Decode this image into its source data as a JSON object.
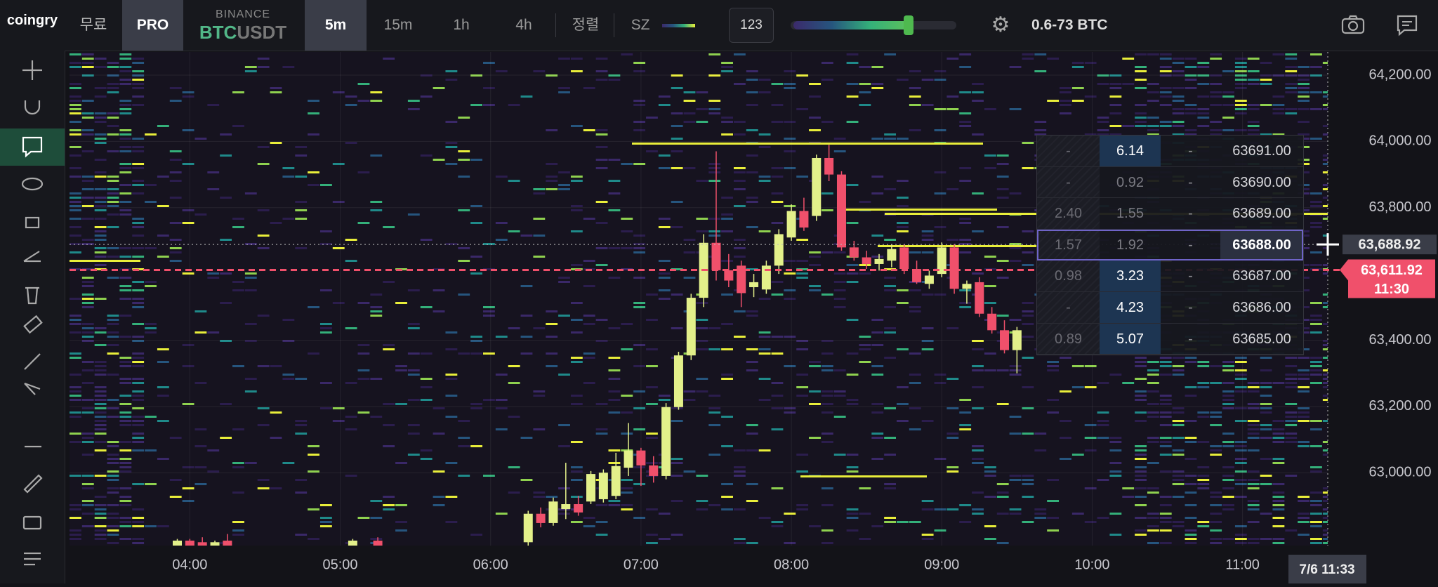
{
  "toolbar": {
    "logo": "coingry",
    "free": "무료",
    "pro": "PRO",
    "exchange": "BINANCE",
    "pair_base": "BTC",
    "pair_quote": "USDT",
    "intervals": [
      "5m",
      "15m",
      "1h",
      "4h"
    ],
    "sort": "정렬",
    "size": "SZ",
    "count": "123",
    "range": "0.6-73 BTC"
  },
  "orderbook": {
    "rows": [
      [
        "-",
        "6.14",
        "-",
        "63691.00"
      ],
      [
        "-",
        "0.92",
        "-",
        "63690.00"
      ],
      [
        "2.40",
        "1.55",
        "-",
        "63689.00"
      ],
      [
        "1.57",
        "1.92",
        "-",
        "63688.00"
      ],
      [
        "0.98",
        "3.23",
        "-",
        "63687.00"
      ],
      [
        "-",
        "4.23",
        "-",
        "63686.00"
      ],
      [
        "0.89",
        "5.07",
        "-",
        "63685.00"
      ]
    ]
  },
  "chart_data": {
    "type": "candlestick",
    "x": [
      "03:55",
      "04:00",
      "04:05",
      "04:10",
      "04:15",
      "05:05",
      "05:15",
      "06:15",
      "06:20",
      "06:25",
      "06:30",
      "06:35",
      "06:40",
      "06:45",
      "06:50",
      "06:55",
      "07:00",
      "07:05",
      "07:10",
      "07:15",
      "07:20",
      "07:25",
      "07:30",
      "07:35",
      "07:40",
      "07:45",
      "07:50",
      "07:55",
      "08:00",
      "08:05",
      "08:10",
      "08:15",
      "08:20",
      "08:25",
      "08:30",
      "08:35",
      "08:40",
      "08:45",
      "08:50",
      "08:55",
      "09:00",
      "09:05",
      "09:10",
      "09:15",
      "09:20",
      "09:25",
      "09:30"
    ],
    "open": [
      62770,
      62795,
      62790,
      62765,
      62795,
      62770,
      62795,
      62790,
      62876,
      62848,
      62890,
      62905,
      62913,
      62920,
      62930,
      63015,
      63067,
      63022,
      62990,
      63198,
      63354,
      63528,
      63694,
      63611,
      63625,
      63560,
      63553,
      63625,
      63710,
      63790,
      63775,
      63950,
      63900,
      63680,
      63650,
      63630,
      63640,
      63680,
      63615,
      63570,
      63600,
      63680,
      63555,
      63575,
      63480,
      63430,
      63370
    ],
    "high": [
      62800,
      62800,
      62805,
      62795,
      62815,
      62800,
      62805,
      62885,
      62895,
      62925,
      63030,
      62930,
      63005,
      63010,
      63060,
      63150,
      63075,
      63050,
      63210,
      63365,
      63540,
      63720,
      63970,
      63660,
      63640,
      63600,
      63640,
      63735,
      63810,
      63830,
      63960,
      63990,
      63910,
      63700,
      63670,
      63660,
      63690,
      63690,
      63640,
      63610,
      63695,
      63690,
      63580,
      63590,
      63500,
      63460,
      63440
    ],
    "low": [
      62760,
      62760,
      62760,
      62755,
      62760,
      62760,
      62760,
      62780,
      62835,
      62840,
      62860,
      62870,
      62905,
      62910,
      62920,
      62990,
      62960,
      62970,
      62980,
      63190,
      63340,
      63500,
      63580,
      63560,
      63500,
      63530,
      63540,
      63600,
      63700,
      63730,
      63760,
      63880,
      63670,
      63640,
      63615,
      63610,
      63620,
      63600,
      63570,
      63555,
      63590,
      63540,
      63510,
      63470,
      63420,
      63360,
      63300
    ],
    "close": [
      62795,
      62770,
      62765,
      62790,
      62770,
      62795,
      62770,
      62876,
      62848,
      62913,
      62905,
      62880,
      62996,
      63000,
      63020,
      63067,
      63022,
      62990,
      63198,
      63354,
      63528,
      63694,
      63611,
      63580,
      63542,
      63575,
      63625,
      63720,
      63790,
      63740,
      63950,
      63900,
      63680,
      63650,
      63630,
      63645,
      63675,
      63615,
      63575,
      63595,
      63680,
      63555,
      63570,
      63480,
      63430,
      63370,
      63430
    ],
    "up_color": "#e3f08a",
    "down_color": "#f0506b",
    "xlim": [
      "03:12",
      "11:34"
    ],
    "ylim": [
      62780,
      64270
    ],
    "xticks": [
      "04:00",
      "05:00",
      "06:00",
      "07:00",
      "08:00",
      "09:00",
      "10:00",
      "11:00"
    ],
    "yticks": [
      {
        "value": 63000,
        "label": "63,000.00"
      },
      {
        "value": 63200,
        "label": "63,200.00"
      },
      {
        "value": 63400,
        "label": "63,400.00"
      },
      {
        "value": 63800,
        "label": "63,800.00"
      },
      {
        "value": 64000,
        "label": "64,000.00"
      },
      {
        "value": 64200,
        "label": "64,200.00"
      }
    ],
    "grid": true,
    "current_price": {
      "value": 63611.92,
      "label": "63,611.92"
    },
    "countdown": "11:30",
    "crosshair_price": {
      "value": 63688.92,
      "label": "63,688.92"
    },
    "crosshair_time": "7/6 11:33"
  }
}
